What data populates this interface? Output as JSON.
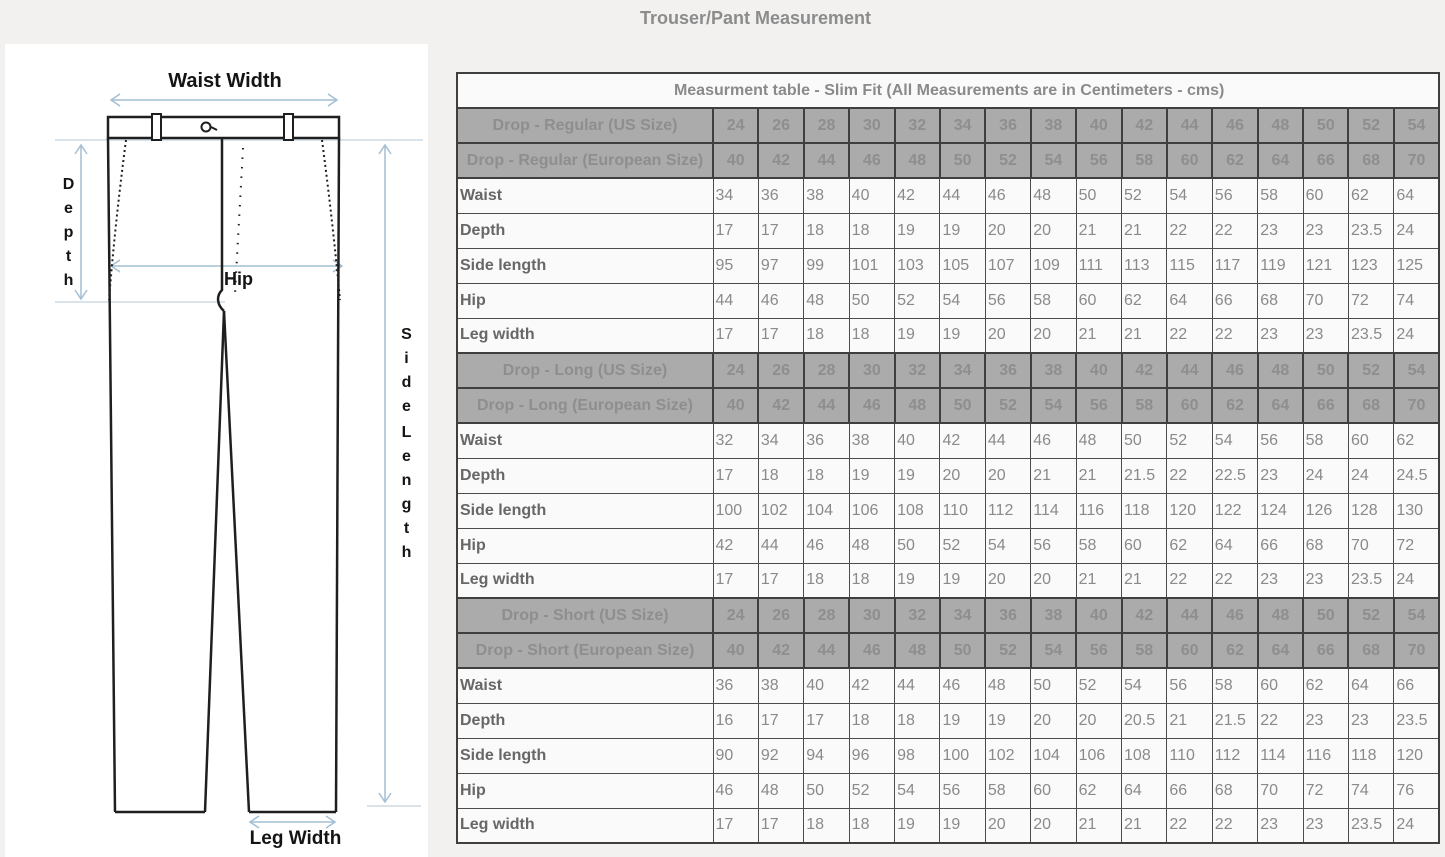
{
  "page": {
    "title": "Trouser/Pant Measurement"
  },
  "diagram": {
    "waist_width_label": "Waist Width",
    "depth_label": "Depth",
    "hip_label": "Hip",
    "side_label": "Side",
    "length_label": "Length",
    "leg_width_label": "Leg Width"
  },
  "colors": {
    "page_background": "#f2f1ef",
    "panel_background": "#ffffff",
    "header_gray": "#ababab",
    "row_background": "#fafafa",
    "table_border": "#4c4c4c",
    "arrow_blue": "#a3bfd4",
    "muted_text": "#8a8a8a"
  },
  "table": {
    "title": "Measurment table - Slim Fit (All Measurements are in Centimeters - cms)",
    "sections": [
      {
        "rows": [
          {
            "type": "size-header",
            "label": "Drop - Regular (US Size)",
            "values": [
              24,
              26,
              28,
              30,
              32,
              34,
              36,
              38,
              40,
              42,
              44,
              46,
              48,
              50,
              52,
              54
            ]
          },
          {
            "type": "size-header",
            "label": "Drop - Regular (European Size)",
            "values": [
              40,
              42,
              44,
              46,
              48,
              50,
              52,
              54,
              56,
              58,
              60,
              62,
              64,
              66,
              68,
              70
            ]
          },
          {
            "type": "data",
            "label": "Waist",
            "values": [
              34,
              36,
              38,
              40,
              42,
              44,
              46,
              48,
              50,
              52,
              54,
              56,
              58,
              60,
              62,
              64
            ]
          },
          {
            "type": "data",
            "label": "Depth",
            "values": [
              17,
              17,
              18,
              18,
              19,
              19,
              20,
              20,
              21,
              21,
              22,
              22,
              23,
              23,
              23.5,
              24
            ]
          },
          {
            "type": "data",
            "label": "Side length",
            "values": [
              95,
              97,
              99,
              101,
              103,
              105,
              107,
              109,
              111,
              113,
              115,
              117,
              119,
              121,
              123,
              125
            ]
          },
          {
            "type": "data",
            "label": "Hip",
            "values": [
              44,
              46,
              48,
              50,
              52,
              54,
              56,
              58,
              60,
              62,
              64,
              66,
              68,
              70,
              72,
              74
            ]
          },
          {
            "type": "data",
            "label": "Leg width",
            "values": [
              17,
              17,
              18,
              18,
              19,
              19,
              20,
              20,
              21,
              21,
              22,
              22,
              23,
              23,
              23.5,
              24
            ]
          }
        ]
      },
      {
        "rows": [
          {
            "type": "size-header",
            "label": "Drop - Long (US Size)",
            "values": [
              24,
              26,
              28,
              30,
              32,
              34,
              36,
              38,
              40,
              42,
              44,
              46,
              48,
              50,
              52,
              54
            ]
          },
          {
            "type": "size-header",
            "label": "Drop - Long (European Size)",
            "values": [
              40,
              42,
              44,
              46,
              48,
              50,
              52,
              54,
              56,
              58,
              60,
              62,
              64,
              66,
              68,
              70
            ]
          },
          {
            "type": "data",
            "label": "Waist",
            "values": [
              32,
              34,
              36,
              38,
              40,
              42,
              44,
              46,
              48,
              50,
              52,
              54,
              56,
              58,
              60,
              62
            ]
          },
          {
            "type": "data",
            "label": "Depth",
            "values": [
              17,
              18,
              18,
              19,
              19,
              20,
              20,
              21,
              21,
              21.5,
              22,
              22.5,
              23,
              24,
              24,
              24.5
            ]
          },
          {
            "type": "data",
            "label": "Side length",
            "values": [
              100,
              102,
              104,
              106,
              108,
              110,
              112,
              114,
              116,
              118,
              120,
              122,
              124,
              126,
              128,
              130
            ]
          },
          {
            "type": "data",
            "label": "Hip",
            "values": [
              42,
              44,
              46,
              48,
              50,
              52,
              54,
              56,
              58,
              60,
              62,
              64,
              66,
              68,
              70,
              72
            ]
          },
          {
            "type": "data",
            "label": "Leg width",
            "values": [
              17,
              17,
              18,
              18,
              19,
              19,
              20,
              20,
              21,
              21,
              22,
              22,
              23,
              23,
              23.5,
              24
            ]
          }
        ]
      },
      {
        "rows": [
          {
            "type": "size-header",
            "label": "Drop - Short (US Size)",
            "values": [
              24,
              26,
              28,
              30,
              32,
              34,
              36,
              38,
              40,
              42,
              44,
              46,
              48,
              50,
              52,
              54
            ]
          },
          {
            "type": "size-header",
            "label": "Drop - Short (European Size)",
            "values": [
              40,
              42,
              44,
              46,
              48,
              50,
              52,
              54,
              56,
              58,
              60,
              62,
              64,
              66,
              68,
              70
            ]
          },
          {
            "type": "data",
            "label": "Waist",
            "values": [
              36,
              38,
              40,
              42,
              44,
              46,
              48,
              50,
              52,
              54,
              56,
              58,
              60,
              62,
              64,
              66
            ]
          },
          {
            "type": "data",
            "label": "Depth",
            "values": [
              16,
              17,
              17,
              18,
              18,
              19,
              19,
              20,
              20,
              20.5,
              21,
              21.5,
              22,
              23,
              23,
              23.5
            ]
          },
          {
            "type": "data",
            "label": "Side length",
            "values": [
              90,
              92,
              94,
              96,
              98,
              100,
              102,
              104,
              106,
              108,
              110,
              112,
              114,
              116,
              118,
              120
            ]
          },
          {
            "type": "data",
            "label": "Hip",
            "values": [
              46,
              48,
              50,
              52,
              54,
              56,
              58,
              60,
              62,
              64,
              66,
              68,
              70,
              72,
              74,
              76
            ]
          },
          {
            "type": "data",
            "label": "Leg width",
            "values": [
              17,
              17,
              18,
              18,
              19,
              19,
              20,
              20,
              21,
              21,
              22,
              22,
              23,
              23,
              23.5,
              24
            ]
          }
        ]
      }
    ]
  }
}
